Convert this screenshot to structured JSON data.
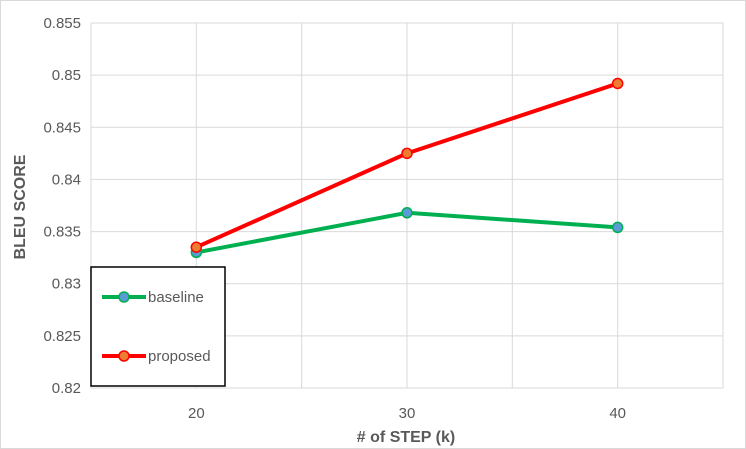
{
  "chart_data": {
    "type": "line",
    "xlabel": "# of STEP (k)",
    "ylabel": "BLEU SCORE",
    "categories": [
      "20",
      "30",
      "40"
    ],
    "x": [
      20,
      30,
      40
    ],
    "xlim": [
      15,
      45
    ],
    "ylim": [
      0.82,
      0.855
    ],
    "yticks": [
      0.82,
      0.825,
      0.83,
      0.835,
      0.84,
      0.845,
      0.85,
      0.855
    ],
    "ytick_labels": [
      "0.82",
      "0.825",
      "0.83",
      "0.835",
      "0.84",
      "0.845",
      "0.85",
      "0.855"
    ],
    "grid": true,
    "legend_position": "bottom-left",
    "series": [
      {
        "name": "baseline",
        "values": [
          0.833,
          0.8368,
          0.8354
        ],
        "color": "#00b050",
        "marker_color": "#5b9bd5"
      },
      {
        "name": "proposed",
        "values": [
          0.8335,
          0.8425,
          0.8492
        ],
        "color": "#ff0000",
        "marker_color": "#ed7d31"
      }
    ]
  }
}
